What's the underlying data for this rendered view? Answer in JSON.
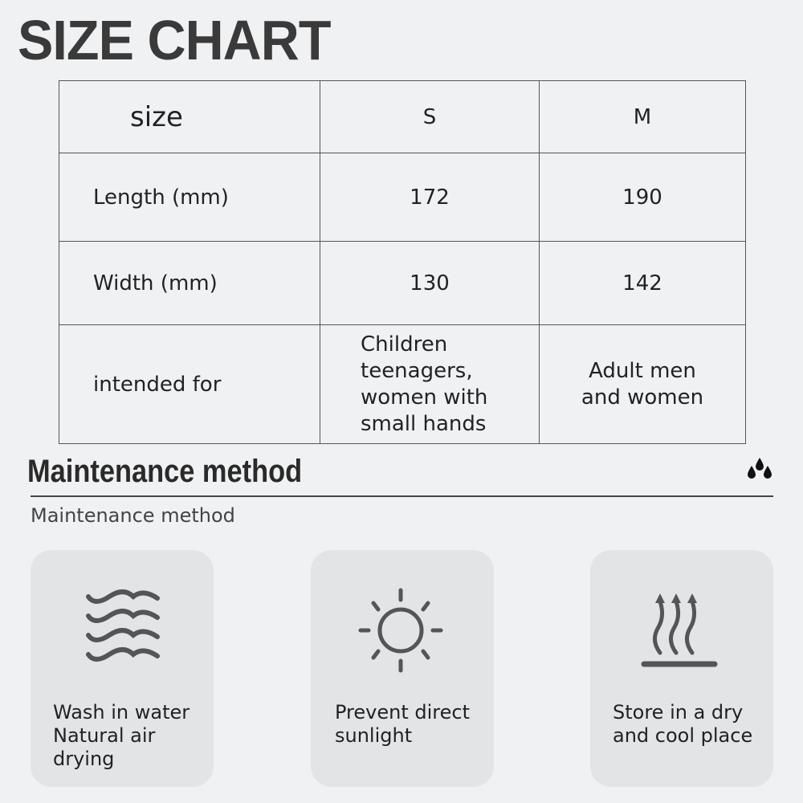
{
  "title": "SIZE CHART",
  "table": {
    "header": [
      "size",
      "S",
      "M"
    ],
    "rows": [
      [
        "Length (mm)",
        "172",
        "190"
      ],
      [
        "Width (mm)",
        "130",
        "142"
      ],
      [
        "intended for",
        "Children teenagers, women with small hands",
        "Adult men and women"
      ]
    ]
  },
  "maintenance": {
    "title": "Maintenance method",
    "subtitle": "Maintenance method",
    "header_icon": "water-drops-icon",
    "cards": [
      {
        "icon": "water-waves-icon",
        "text": "Wash in water\nNatural air\ndrying"
      },
      {
        "icon": "sun-icon",
        "text": "Prevent direct\nsunlight"
      },
      {
        "icon": "heat-rising-icon",
        "text": "Store in a dry\nand cool place"
      }
    ]
  },
  "colors": {
    "background": "#f0f1f3",
    "card": "#e3e4e6",
    "icon": "#555555"
  }
}
